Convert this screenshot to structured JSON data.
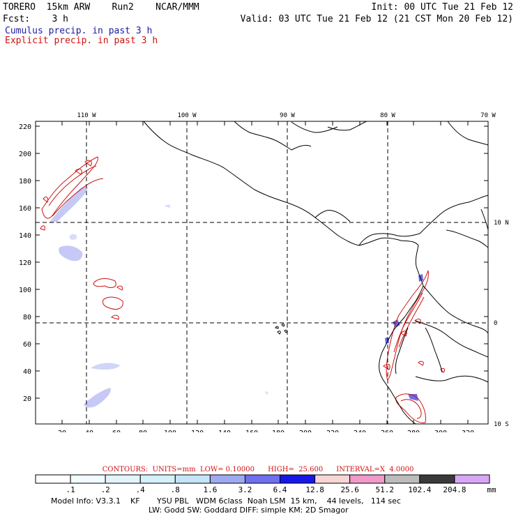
{
  "header": {
    "line1_left": "TORERO  15km ARW    Run2    NCAR/MMM",
    "line1_right": "Init: 00 UTC Tue 21 Feb 12",
    "line2_left": "Fcst:    3 h",
    "line2_right": "Valid: 03 UTC Tue 21 Feb 12 (21 CST Mon 20 Feb 12)",
    "legend_cumulus": "Cumulus precip. in past 3 h",
    "legend_explicit": "Explicit precip. in past 3 h"
  },
  "map": {
    "top_lon_labels": [
      "110 W",
      "100 W",
      "90 W",
      "80 W",
      "70 W"
    ],
    "right_lat_labels": [
      "10 N",
      "0",
      "10 S"
    ],
    "left_axis_ticks": [
      "220",
      "200",
      "180",
      "160",
      "140",
      "120",
      "100",
      "80",
      "60",
      "40",
      "20"
    ],
    "bottom_axis_ticks": [
      "20",
      "40",
      "60",
      "80",
      "100",
      "120",
      "140",
      "160",
      "180",
      "200",
      "220",
      "240",
      "260",
      "280",
      "300",
      "320"
    ]
  },
  "contours_line": "CONTOURS:  UNITS=mm  LOW= 0.10000      HIGH=  25.600      INTERVAL=X  4.0000",
  "colorbar": {
    "colors": [
      "#ffffff",
      "#f2fbff",
      "#e3f5fb",
      "#d4f0fa",
      "#c6e4f7",
      "#9fa9f2",
      "#6f6ff0",
      "#1818e6",
      "#f8d6d6",
      "#f09aca",
      "#bcbcbc",
      "#3a3a3a",
      "#d8a6f6"
    ],
    "labels": [
      ".1",
      ".2",
      ".4",
      ".8",
      "1.6",
      "3.2",
      "6.4",
      "12.8",
      "25.6",
      "51.2",
      "102.4",
      "204.8"
    ],
    "unit": "mm"
  },
  "model_info": {
    "line1": "Model Info: V3.3.1    KF       YSU PBL   WDM 6class  Noah LSM  15 km,    44 levels,   114 sec",
    "line2": "LW: Godd SW: Goddard DIFF: simple KM: 2D Smagor"
  },
  "colors": {
    "cumulus_text": "#1a1aa6",
    "explicit_contour": "#d01010",
    "coastline": "#000000"
  }
}
